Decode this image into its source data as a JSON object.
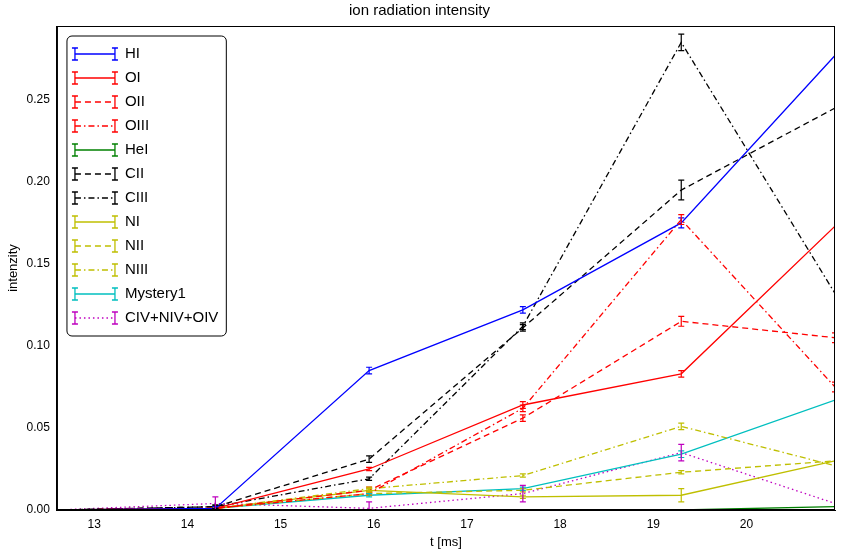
{
  "chart_data": {
    "type": "line",
    "title": "ion radiation intensity",
    "x_label": "t [ms]",
    "y_label": "intenzity",
    "x": [
      12.6,
      14.3,
      15.95,
      17.6,
      19.3,
      20.95
    ],
    "xlim": [
      12.6,
      20.95
    ],
    "xticks": [
      13,
      14,
      15,
      16,
      17,
      18,
      19,
      20
    ],
    "ylim": [
      0,
      0.295
    ],
    "yticks": [
      {
        "value": 0,
        "label": "0.00"
      },
      {
        "value": 0.05,
        "label": "0.05"
      },
      {
        "value": 0.1,
        "label": "0.10"
      },
      {
        "value": 0.15,
        "label": "0.15"
      },
      {
        "value": 0.2,
        "label": "0.20"
      },
      {
        "value": 0.25,
        "label": "0.25"
      }
    ],
    "grid": false,
    "legend": "upper left",
    "series": [
      {
        "name": "HI",
        "color": "#0000ff",
        "line_style": "solid",
        "values": [
          0,
          0.001,
          0.085,
          0.122,
          0.175,
          0.277
        ],
        "errors": [
          0,
          0.001,
          0.002,
          0.002,
          0.003,
          0
        ]
      },
      {
        "name": "OI",
        "color": "#ff0000",
        "line_style": "solid",
        "values": [
          0,
          0.001,
          0.025,
          0.064,
          0.083,
          0.173
        ],
        "errors": [
          0,
          0,
          0.001,
          0.002,
          0.002,
          0
        ]
      },
      {
        "name": "OII",
        "color": "#ff0000",
        "line_style": "dashed",
        "values": [
          0,
          0.001,
          0.012,
          0.056,
          0.115,
          0.105
        ],
        "errors": [
          0,
          0,
          0.002,
          0.002,
          0.003,
          0.003
        ]
      },
      {
        "name": "OIII",
        "color": "#ff0000",
        "line_style": "dashdot",
        "values": [
          0,
          0.001,
          0.01,
          0.062,
          0.177,
          0.075
        ],
        "errors": [
          0,
          0,
          0.001,
          0.002,
          0.003,
          0.003
        ]
      },
      {
        "name": "HeI",
        "color": "#008000",
        "line_style": "solid",
        "values": [
          0,
          0,
          0,
          0,
          0,
          0.002
        ],
        "errors": [
          0,
          0,
          0,
          0,
          0,
          0
        ]
      },
      {
        "name": "CII",
        "color": "#000000",
        "line_style": "dashed",
        "values": [
          0,
          0.002,
          0.031,
          0.111,
          0.195,
          0.245
        ],
        "errors": [
          0,
          0.001,
          0.002,
          0.002,
          0.006,
          0
        ]
      },
      {
        "name": "CIII",
        "color": "#000000",
        "line_style": "dashdot",
        "values": [
          0,
          0.002,
          0.019,
          0.112,
          0.285,
          0.132
        ],
        "errors": [
          0,
          0.001,
          0.001,
          0.002,
          0.005,
          0
        ]
      },
      {
        "name": "NI",
        "color": "#bfbf00",
        "line_style": "solid",
        "values": [
          0,
          0.001,
          0.012,
          0.008,
          0.009,
          0.03
        ],
        "errors": [
          0,
          0,
          0.001,
          0.001,
          0.004,
          0
        ]
      },
      {
        "name": "NII",
        "color": "#bfbf00",
        "line_style": "dashed",
        "values": [
          0,
          0.001,
          0.01,
          0.012,
          0.023,
          0.03
        ],
        "errors": [
          0,
          0,
          0.001,
          0.001,
          0.001,
          0
        ]
      },
      {
        "name": "NIII",
        "color": "#bfbf00",
        "line_style": "dashdot",
        "values": [
          0,
          0.001,
          0.013,
          0.021,
          0.051,
          0.027
        ],
        "errors": [
          0,
          0,
          0.001,
          0.001,
          0.002,
          0
        ]
      },
      {
        "name": "Mystery1",
        "color": "#00bfbf",
        "line_style": "solid",
        "values": [
          0,
          0.001,
          0.009,
          0.013,
          0.034,
          0.067
        ],
        "errors": [
          0,
          0,
          0.001,
          0.001,
          0.002,
          0
        ]
      },
      {
        "name": "CIV+NIV+OIV",
        "color": "#bf00bf",
        "line_style": "dotted",
        "values": [
          0,
          0.004,
          0.001,
          0.01,
          0.035,
          0.004
        ],
        "errors": [
          0,
          0.004,
          0.004,
          0.005,
          0.005,
          0
        ]
      }
    ]
  }
}
